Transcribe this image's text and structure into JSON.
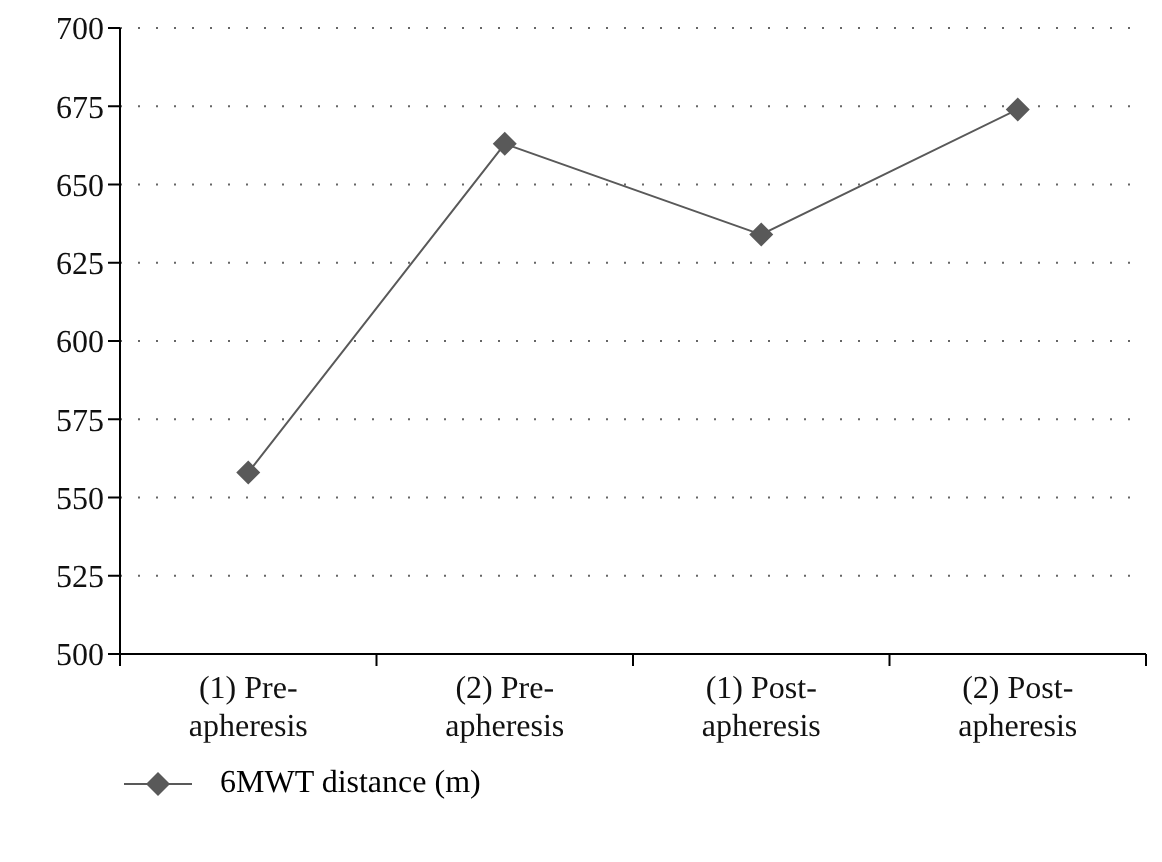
{
  "chart_data": {
    "type": "line",
    "categories": [
      "(1) Pre-apheresis",
      "(2) Pre-apheresis",
      "(1) Post-apheresis",
      "(2) Post-apheresis"
    ],
    "series": [
      {
        "name": "6MWT distance (m)",
        "color": "#595959",
        "values": [
          558,
          663,
          634,
          674
        ]
      }
    ],
    "ylim": [
      500,
      700
    ],
    "yticks": [
      500,
      525,
      550,
      575,
      600,
      625,
      650,
      675,
      700
    ],
    "grid": "y",
    "legend": "bottom left",
    "marker": "diamond",
    "line_style": "solid"
  }
}
